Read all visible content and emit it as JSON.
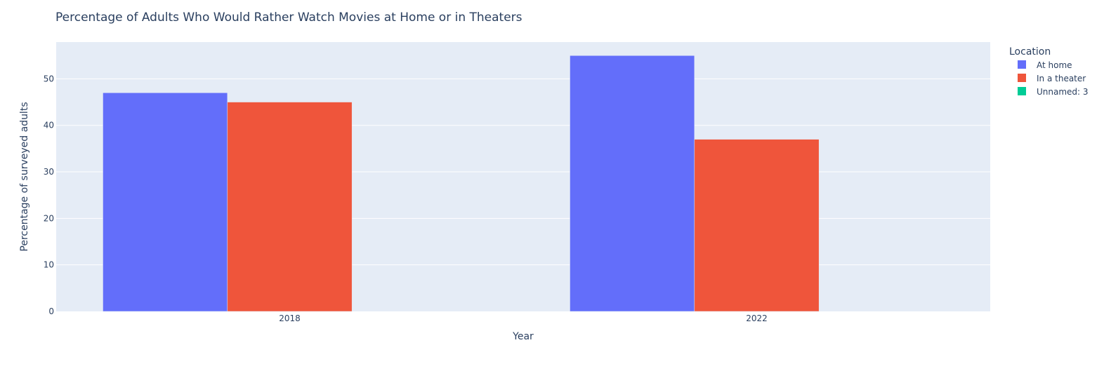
{
  "chart_data": {
    "type": "bar",
    "title": "Percentage of Adults Who Would Rather Watch Movies at Home or in Theaters",
    "xlabel": "Year",
    "ylabel": "Percentage of surveyed adults",
    "categories": [
      "2018",
      "2022"
    ],
    "series": [
      {
        "name": "At home",
        "values": [
          47,
          55
        ],
        "color": "#636efa"
      },
      {
        "name": "In a theater",
        "values": [
          45,
          37
        ],
        "color": "#ef553b"
      },
      {
        "name": "Unnamed: 3",
        "values": [
          null,
          null
        ],
        "color": "#00cc96"
      }
    ],
    "ylim": [
      0,
      57.9
    ],
    "yticks": [
      0,
      10,
      20,
      30,
      40,
      50
    ],
    "grid": true,
    "legend": {
      "title": "Location",
      "position": "top-right"
    },
    "colors": {
      "plot_background": "#e5ecf6",
      "gridline": "#ffffff",
      "text": "#2a3f5f"
    }
  }
}
